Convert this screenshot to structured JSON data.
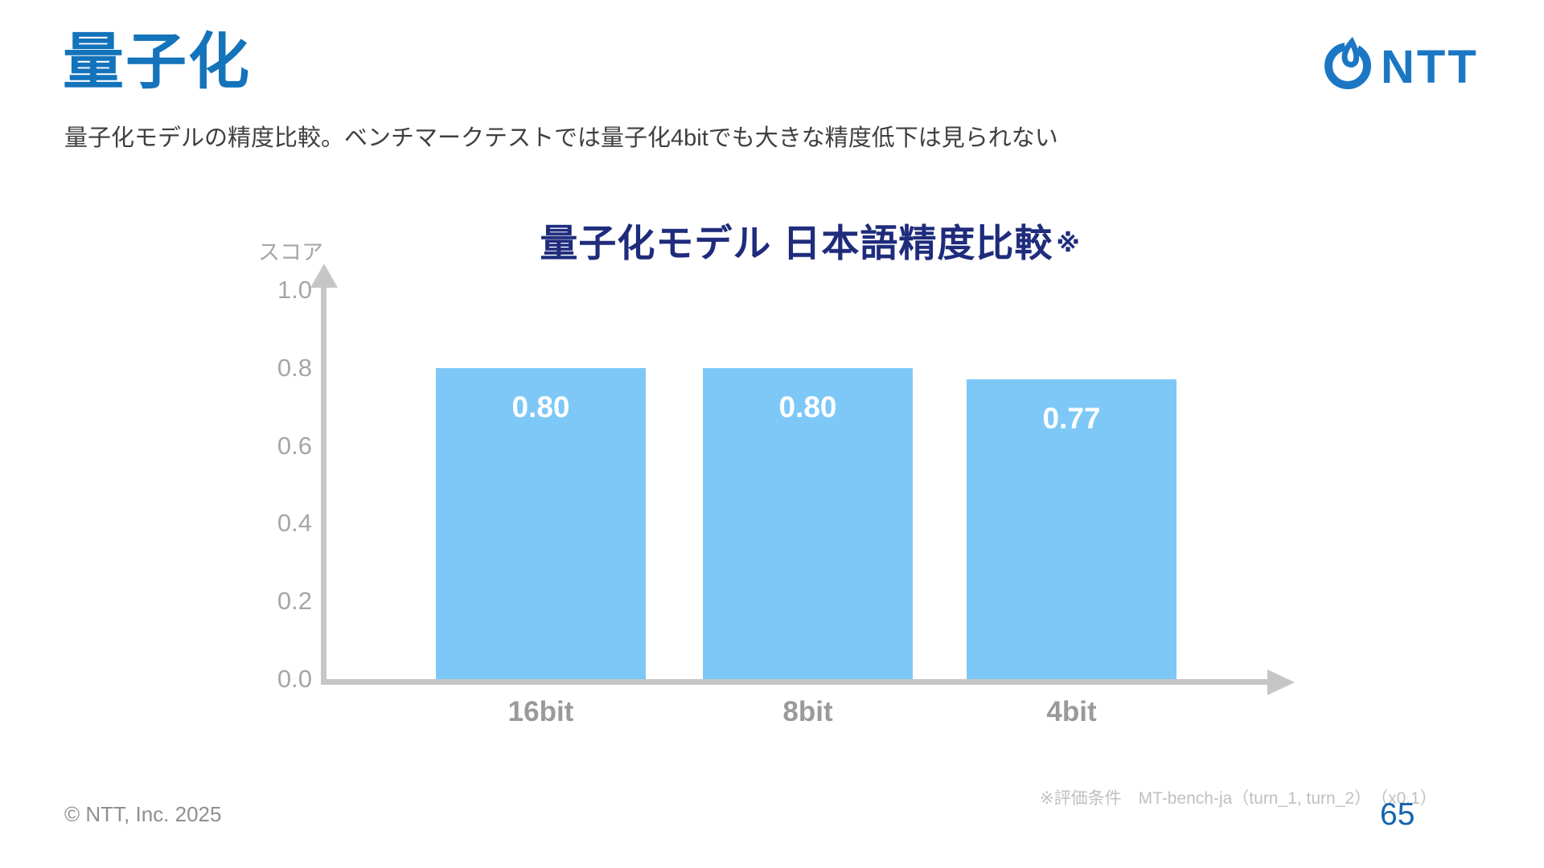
{
  "slide": {
    "title": "量子化",
    "subtitle": "量子化モデルの精度比較。ベンチマークテストでは量子化4bitでも大きな精度低下は見られない",
    "logo_text": "NTT",
    "footnote": "※評価条件　MT-bench-ja（turn_1, turn_2）　（x0.1）",
    "copyright": "© NTT, Inc.  2025",
    "page_number": "65"
  },
  "colors": {
    "title_blue": "#1373BB",
    "chart_title_navy": "#1F2C7C",
    "bar_blue": "#7DC8F7",
    "axis_gray": "#C6C6C6",
    "tick_gray": "#A6A6A6",
    "xlabel_gray": "#9A9A9A",
    "footnote_gray": "#C0C0C0",
    "copyright_gray": "#8F8F8F",
    "page_blue": "#1565B0",
    "logo_blue": "#1B77C4"
  },
  "chart_data": {
    "type": "bar",
    "title": "量子化モデル 日本語精度比較",
    "title_note_mark": "※",
    "ylabel": "スコア",
    "xlabel": "",
    "categories": [
      "16bit",
      "8bit",
      "4bit"
    ],
    "values": [
      0.8,
      0.8,
      0.77
    ],
    "value_labels": [
      "0.80",
      "0.80",
      "0.77"
    ],
    "yticks": [
      0.0,
      0.2,
      0.4,
      0.6,
      0.8,
      1.0
    ],
    "ytick_labels": [
      "0.0",
      "0.2",
      "0.4",
      "0.6",
      "0.8",
      "1.0"
    ],
    "ylim": [
      0,
      1.0
    ],
    "grid": false,
    "legend": "none",
    "bar_color": "#7DC8F7",
    "value_label_color": "#FFFFFF",
    "value_label_position": "inside-top"
  }
}
